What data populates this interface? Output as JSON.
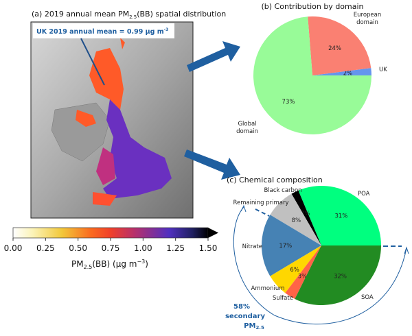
{
  "panel_a": {
    "title_pre": "(a) 2019 annual mean PM",
    "title_sub": "2.5",
    "title_post": "(BB) spatial distribution",
    "annotation": "UK 2019 annual mean = 0.99 μg m",
    "annotation_sup": "-3",
    "colorbar": {
      "ticks": [
        "0.00",
        "0.25",
        "0.50",
        "0.75",
        "1.00",
        "1.25",
        "1.50"
      ],
      "label_pre": "PM",
      "label_sub": "2.5",
      "label_mid": "(BB) (μg m",
      "label_sup": "−3",
      "label_post": ")",
      "range": [
        0,
        1.5
      ]
    }
  },
  "chart_data": [
    {
      "type": "pie",
      "title": "(b) Contribution by domain",
      "labels": [
        "UK",
        "European domain",
        "Global domain"
      ],
      "label_lines": [
        [
          "UK"
        ],
        [
          "European",
          "domain"
        ],
        [
          "Global",
          "domain"
        ]
      ],
      "values": [
        2,
        24,
        73
      ],
      "value_labels": [
        "2%",
        "24%",
        "73%"
      ],
      "colors": [
        "#6495ed",
        "#fa8072",
        "#98fb98"
      ]
    },
    {
      "type": "pie",
      "title": "(c) Chemical composition",
      "labels": [
        "POA",
        "Black carbon",
        "Remaining primary",
        "Nitrate",
        "Ammonium",
        "Sulfate",
        "SOA"
      ],
      "values": [
        31,
        2,
        8,
        17,
        6,
        3,
        32
      ],
      "value_labels": [
        "31%",
        "2%",
        "8%",
        "17%",
        "6%",
        "3%",
        "32%"
      ],
      "colors": [
        "#00ff7f",
        "#000000",
        "#c0c0c0",
        "#4682b4",
        "#ffd700",
        "#ff6347",
        "#228b22"
      ],
      "annotation": [
        "58%",
        "secondary",
        "PM",
        "2.5"
      ]
    }
  ]
}
